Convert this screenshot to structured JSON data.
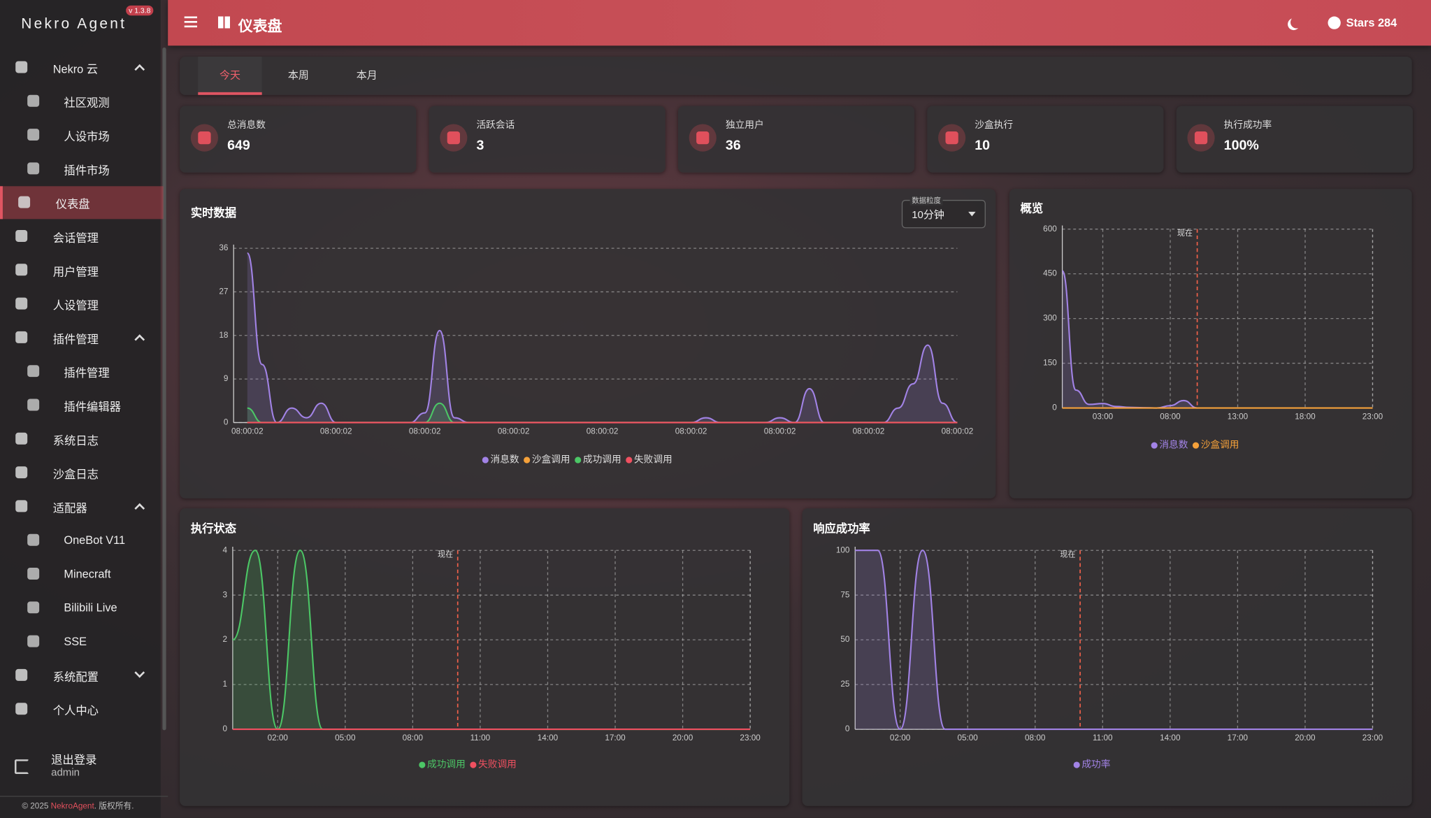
{
  "sidebar": {
    "brand": "Nekro Agent",
    "version": "v 1.3.8",
    "menu": [
      {
        "label": "Nekro 云",
        "expanded": true,
        "children": [
          "社区观测",
          "人设市场",
          "插件市场"
        ]
      },
      {
        "label": "仪表盘",
        "active": true
      },
      {
        "label": "会话管理"
      },
      {
        "label": "用户管理"
      },
      {
        "label": "人设管理"
      },
      {
        "label": "插件管理",
        "expanded": true,
        "children": [
          "插件管理",
          "插件编辑器"
        ]
      },
      {
        "label": "系统日志"
      },
      {
        "label": "沙盒日志"
      },
      {
        "label": "适配器",
        "expanded": true,
        "children": [
          "OneBot V11",
          "Minecraft",
          "Bilibili Live",
          "SSE"
        ]
      },
      {
        "label": "系统配置",
        "expanded": false
      },
      {
        "label": "个人中心"
      }
    ],
    "logout": "退出登录",
    "user": "admin",
    "footer": {
      "prefix": "© 2025 ",
      "link": "NekroAgent",
      "suffix": ". 版权所有."
    }
  },
  "header": {
    "title": "仪表盘",
    "stars": "Stars 284"
  },
  "tabs": {
    "items": [
      "今天",
      "本周",
      "本月"
    ],
    "active": 0
  },
  "stats": [
    {
      "label": "总消息数",
      "value": "649"
    },
    {
      "label": "活跃会话",
      "value": "3"
    },
    {
      "label": "独立用户",
      "value": "36"
    },
    {
      "label": "沙盒执行",
      "value": "10"
    },
    {
      "label": "执行成功率",
      "value": "100%"
    }
  ],
  "granularity": {
    "label": "数据粒度",
    "value": "10分钟"
  },
  "chart_data": [
    {
      "type": "line",
      "title": "实时数据",
      "grid": "y",
      "categories": [
        "08:00:02",
        null,
        null,
        null,
        null,
        null,
        "08:00:02",
        null,
        null,
        null,
        null,
        null,
        "08:00:02",
        null,
        null,
        null,
        null,
        null,
        "08:00:02",
        null,
        null,
        null,
        null,
        null,
        "08:00:02",
        null,
        null,
        null,
        null,
        null,
        "08:00:02",
        null,
        null,
        null,
        null,
        null,
        "08:00:02",
        null,
        null,
        null,
        null,
        null,
        "08:00:02",
        null,
        null,
        null,
        null,
        null,
        "08:00:02"
      ],
      "series": [
        {
          "name": "消息数",
          "color": "#a283e6",
          "values": [
            35,
            12,
            0,
            3,
            1,
            4,
            0,
            0,
            0,
            0,
            0,
            0,
            2,
            19,
            1,
            0,
            0,
            0,
            0,
            0,
            0,
            0,
            0,
            0,
            0,
            0,
            0,
            0,
            0,
            0,
            0,
            1,
            0,
            0,
            0,
            0,
            1,
            0,
            7,
            0,
            0,
            0,
            0,
            0,
            3,
            8,
            16,
            4,
            0
          ]
        },
        {
          "name": "沙盒调用",
          "color": "#f5a13a",
          "values": [
            0,
            0,
            0,
            0,
            0,
            0,
            0,
            0,
            0,
            0,
            0,
            0,
            0,
            0,
            0,
            0,
            0,
            0,
            0,
            0,
            0,
            0,
            0,
            0,
            0,
            0,
            0,
            0,
            0,
            0,
            0,
            0,
            0,
            0,
            0,
            0,
            0,
            0,
            0,
            0,
            0,
            0,
            0,
            0,
            0,
            0,
            0,
            0,
            0
          ]
        },
        {
          "name": "成功调用",
          "color": "#4cc766",
          "values": [
            3,
            0,
            0,
            0,
            0,
            0,
            0,
            0,
            0,
            0,
            0,
            0,
            0,
            4,
            0,
            0,
            0,
            0,
            0,
            0,
            0,
            0,
            0,
            0,
            0,
            0,
            0,
            0,
            0,
            0,
            0,
            0,
            0,
            0,
            0,
            0,
            0,
            0,
            0,
            0,
            0,
            0,
            0,
            0,
            0,
            0,
            0,
            0,
            0
          ]
        },
        {
          "name": "失败调用",
          "color": "#f05060",
          "values": [
            0,
            0,
            0,
            0,
            0,
            0,
            0,
            0,
            0,
            0,
            0,
            0,
            0,
            0,
            0,
            0,
            0,
            0,
            0,
            0,
            0,
            0,
            0,
            0,
            0,
            0,
            0,
            0,
            0,
            0,
            0,
            0,
            0,
            0,
            0,
            0,
            0,
            0,
            0,
            0,
            0,
            0,
            0,
            0,
            0,
            0,
            0,
            0,
            0
          ]
        }
      ],
      "ylim": [
        0,
        36
      ],
      "yticks": [
        0,
        9,
        18,
        27,
        36
      ]
    },
    {
      "type": "line",
      "title": "概览",
      "grid": "both",
      "x": [
        0,
        1,
        2,
        3,
        4,
        5,
        6,
        7,
        8,
        9,
        10,
        11,
        12,
        13,
        14,
        15,
        16,
        17,
        18,
        19,
        20,
        21,
        22,
        23
      ],
      "series": [
        {
          "name": "消息数",
          "color": "#a283e6",
          "values": [
            460,
            60,
            12,
            15,
            5,
            2,
            1,
            0,
            8,
            25,
            0,
            null,
            null,
            null,
            null,
            null,
            null,
            null,
            null,
            null,
            null,
            null,
            null,
            null
          ]
        },
        {
          "name": "沙盒调用",
          "color": "#f5a13a",
          "values": [
            0,
            0,
            0,
            0,
            0,
            0,
            0,
            0,
            0,
            0,
            0,
            0,
            0,
            0,
            0,
            0,
            0,
            0,
            0,
            0,
            0,
            0,
            0,
            0
          ]
        }
      ],
      "xlim": [
        0,
        23
      ],
      "xticks": [
        {
          "value": 3,
          "label": "03:00"
        },
        {
          "value": 8,
          "label": "08:00"
        },
        {
          "value": 13,
          "label": "13:00"
        },
        {
          "value": 18,
          "label": "18:00"
        },
        {
          "value": 23,
          "label": "23:00"
        }
      ],
      "ylim": [
        0,
        600
      ],
      "yticks": [
        0,
        150,
        300,
        450,
        600
      ],
      "annotations": [
        {
          "label": "现在",
          "x": 10
        }
      ]
    },
    {
      "type": "line",
      "title": "执行状态",
      "grid": "both",
      "x": [
        0,
        1,
        2,
        3,
        4,
        5,
        6,
        7,
        8,
        9,
        10,
        11,
        12,
        13,
        14,
        15,
        16,
        17,
        18,
        19,
        20,
        21,
        22,
        23
      ],
      "series": [
        {
          "name": "成功调用",
          "color": "#4cc766",
          "values": [
            2,
            4,
            0,
            4,
            0,
            0,
            0,
            0,
            0,
            0,
            0,
            0,
            0,
            0,
            0,
            0,
            0,
            0,
            0,
            0,
            0,
            0,
            0,
            0
          ]
        },
        {
          "name": "失败调用",
          "color": "#f05060",
          "values": [
            0,
            0,
            0,
            0,
            0,
            0,
            0,
            0,
            0,
            0,
            0,
            0,
            0,
            0,
            0,
            0,
            0,
            0,
            0,
            0,
            0,
            0,
            0,
            0
          ]
        }
      ],
      "xlim": [
        0,
        23
      ],
      "xticks": [
        {
          "value": 2,
          "label": "02:00"
        },
        {
          "value": 5,
          "label": "05:00"
        },
        {
          "value": 8,
          "label": "08:00"
        },
        {
          "value": 11,
          "label": "11:00"
        },
        {
          "value": 14,
          "label": "14:00"
        },
        {
          "value": 17,
          "label": "17:00"
        },
        {
          "value": 20,
          "label": "20:00"
        },
        {
          "value": 23,
          "label": "23:00"
        }
      ],
      "ylim": [
        0,
        4
      ],
      "yticks": [
        0,
        1,
        2,
        3,
        4
      ],
      "annotations": [
        {
          "label": "现在",
          "x": 10
        }
      ]
    },
    {
      "type": "line",
      "title": "响应成功率",
      "grid": "both",
      "x": [
        0,
        1,
        2,
        3,
        4,
        5,
        6,
        7,
        8,
        9,
        10,
        11,
        12,
        13,
        14,
        15,
        16,
        17,
        18,
        19,
        20,
        21,
        22,
        23
      ],
      "series": [
        {
          "name": "成功率",
          "color": "#a283e6",
          "values": [
            100,
            100,
            0,
            100,
            0,
            0,
            0,
            0,
            0,
            0,
            0,
            0,
            0,
            0,
            0,
            0,
            0,
            0,
            0,
            0,
            0,
            0,
            0,
            0
          ]
        }
      ],
      "xlim": [
        0,
        23
      ],
      "xticks": [
        {
          "value": 2,
          "label": "02:00"
        },
        {
          "value": 5,
          "label": "05:00"
        },
        {
          "value": 8,
          "label": "08:00"
        },
        {
          "value": 11,
          "label": "11:00"
        },
        {
          "value": 14,
          "label": "14:00"
        },
        {
          "value": 17,
          "label": "17:00"
        },
        {
          "value": 20,
          "label": "20:00"
        },
        {
          "value": 23,
          "label": "23:00"
        }
      ],
      "ylim": [
        0,
        100
      ],
      "yticks": [
        0,
        25,
        50,
        75,
        100
      ],
      "annotations": [
        {
          "label": "现在",
          "x": 10
        }
      ]
    }
  ]
}
